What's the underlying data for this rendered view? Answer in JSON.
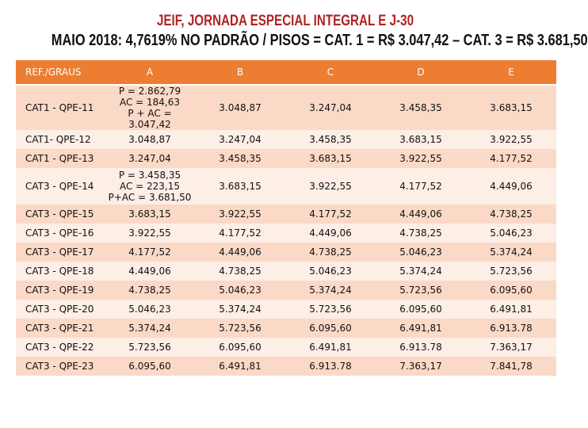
{
  "title": "JEIF, JORNADA ESPECIAL INTEGRAL E J-30",
  "subtitle": "MAIO 2018: 4,7619% NO PADRÃO / PISOS = CAT. 1 = R$ 3.047,42 – CAT. 3 = R$ 3.681,50",
  "colors": {
    "title": "#b22222",
    "header_bg": "#ed7d31",
    "row_dark": "#fbd9c7",
    "row_light": "#fdeee6"
  },
  "headers": [
    "REF./GRAUS",
    "A",
    "B",
    "C",
    "D",
    "E"
  ],
  "rows": [
    {
      "ref": "CAT1 - QPE-11",
      "a": [
        "P = 2.862,79",
        "AC = 184,63",
        "P + AC = 3.047,42"
      ],
      "b": "3.048,87",
      "c": "3.247,04",
      "d": "3.458,35",
      "e": "3.683,15"
    },
    {
      "ref": "CAT1- QPE-12",
      "a": [
        "3.048,87"
      ],
      "b": "3.247,04",
      "c": "3.458,35",
      "d": "3.683,15",
      "e": "3.922,55"
    },
    {
      "ref": "CAT1 - QPE-13",
      "a": [
        "3.247,04"
      ],
      "b": "3.458,35",
      "c": "3.683,15",
      "d": "3.922,55",
      "e": "4.177,52"
    },
    {
      "ref": "CAT3 - QPE-14",
      "a": [
        "P = 3.458,35",
        "AC = 223,15",
        "P+AC = 3.681,50"
      ],
      "b": "3.683,15",
      "c": "3.922,55",
      "d": "4.177,52",
      "e": "4.449,06"
    },
    {
      "ref": "CAT3 - QPE-15",
      "a": [
        "3.683,15"
      ],
      "b": "3.922,55",
      "c": "4.177,52",
      "d": "4.449,06",
      "e": "4.738,25"
    },
    {
      "ref": "CAT3 - QPE-16",
      "a": [
        "3.922,55"
      ],
      "b": "4.177,52",
      "c": "4.449,06",
      "d": "4.738,25",
      "e": "5.046,23"
    },
    {
      "ref": "CAT3 - QPE-17",
      "a": [
        "4.177,52"
      ],
      "b": "4.449,06",
      "c": "4.738,25",
      "d": "5.046,23",
      "e": "5.374,24"
    },
    {
      "ref": "CAT3 - QPE-18",
      "a": [
        "4.449,06"
      ],
      "b": "4.738,25",
      "c": "5.046,23",
      "d": "5.374,24",
      "e": "5.723,56"
    },
    {
      "ref": "CAT3 - QPE-19",
      "a": [
        "4.738,25"
      ],
      "b": "5.046,23",
      "c": "5.374,24",
      "d": "5.723,56",
      "e": "6.095,60"
    },
    {
      "ref": "CAT3 - QPE-20",
      "a": [
        "5.046,23"
      ],
      "b": "5.374,24",
      "c": "5.723,56",
      "d": "6.095,60",
      "e": "6.491,81"
    },
    {
      "ref": "CAT3 - QPE-21",
      "a": [
        "5.374,24"
      ],
      "b": "5.723,56",
      "c": "6.095,60",
      "d": "6.491,81",
      "e": "6.913.78"
    },
    {
      "ref": "CAT3 - QPE-22",
      "a": [
        "5.723,56"
      ],
      "b": "6.095,60",
      "c": "6.491,81",
      "d": "6.913.78",
      "e": "7.363,17"
    },
    {
      "ref": "CAT3 - QPE-23",
      "a": [
        "6.095,60"
      ],
      "b": "6.491,81",
      "c": "6.913.78",
      "d": "7.363,17",
      "e": "7.841,78"
    }
  ]
}
